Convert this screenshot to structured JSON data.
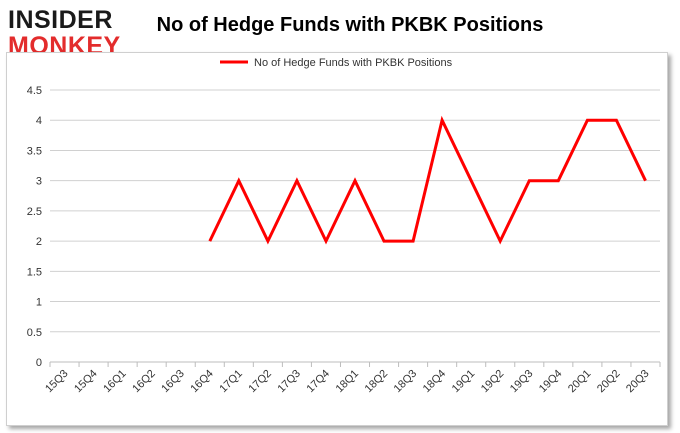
{
  "logo": {
    "line1": "INSIDER",
    "line2": "MONKEY"
  },
  "chart_data": {
    "type": "line",
    "title": "No of Hedge Funds with PKBK Positions",
    "xlabel": "",
    "ylabel": "",
    "categories": [
      "15Q3",
      "15Q4",
      "16Q1",
      "16Q2",
      "16Q3",
      "16Q4",
      "17Q1",
      "17Q2",
      "17Q3",
      "17Q4",
      "18Q1",
      "18Q2",
      "18Q3",
      "18Q4",
      "19Q1",
      "19Q2",
      "19Q3",
      "19Q4",
      "20Q1",
      "20Q2",
      "20Q3"
    ],
    "series": [
      {
        "name": "No of Hedge Funds with PKBK Positions",
        "color": "#ff0000",
        "values": [
          null,
          null,
          null,
          null,
          null,
          2,
          3,
          2,
          3,
          2,
          3,
          2,
          2,
          4,
          3,
          2,
          3,
          3,
          4,
          4,
          3
        ]
      }
    ],
    "ylim": [
      0,
      4.5
    ],
    "yticks": [
      "0",
      "0.5",
      "1",
      "1.5",
      "2",
      "2.5",
      "3",
      "3.5",
      "4",
      "4.5"
    ],
    "grid": true,
    "legend": "top-center"
  }
}
